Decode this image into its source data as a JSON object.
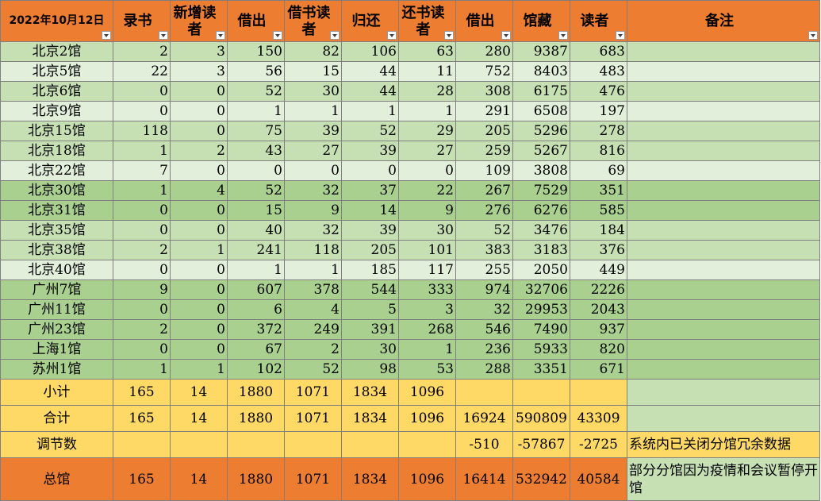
{
  "header": {
    "date": "2022年10月12日",
    "cols": [
      "录书",
      "新增读者",
      "借出",
      "借书读者",
      "归还",
      "还书读者",
      "借出",
      "馆藏",
      "读者",
      "备注"
    ]
  },
  "rows": [
    {
      "name": "北京2馆",
      "v": [
        "2",
        "3",
        "150",
        "82",
        "106",
        "63",
        "280",
        "9387",
        "683"
      ],
      "shade": "a"
    },
    {
      "name": "北京5馆",
      "v": [
        "22",
        "3",
        "56",
        "15",
        "44",
        "11",
        "752",
        "8403",
        "483"
      ],
      "shade": "b"
    },
    {
      "name": "北京6馆",
      "v": [
        "0",
        "0",
        "52",
        "30",
        "44",
        "28",
        "308",
        "6175",
        "476"
      ],
      "shade": "a"
    },
    {
      "name": "北京9馆",
      "v": [
        "0",
        "0",
        "1",
        "1",
        "1",
        "1",
        "291",
        "6508",
        "197"
      ],
      "shade": "b"
    },
    {
      "name": "北京15馆",
      "v": [
        "118",
        "0",
        "75",
        "39",
        "52",
        "29",
        "205",
        "5296",
        "278"
      ],
      "shade": "a"
    },
    {
      "name": "北京18馆",
      "v": [
        "1",
        "2",
        "43",
        "27",
        "39",
        "27",
        "259",
        "5267",
        "816"
      ],
      "shade": "a"
    },
    {
      "name": "北京22馆",
      "v": [
        "7",
        "0",
        "0",
        "0",
        "0",
        "0",
        "109",
        "3808",
        "69"
      ],
      "shade": "b"
    },
    {
      "name": "北京30馆",
      "v": [
        "1",
        "4",
        "52",
        "32",
        "37",
        "22",
        "267",
        "7529",
        "351"
      ],
      "shade": "c"
    },
    {
      "name": "北京31馆",
      "v": [
        "0",
        "0",
        "15",
        "9",
        "14",
        "9",
        "276",
        "6276",
        "585"
      ],
      "shade": "c"
    },
    {
      "name": "北京35馆",
      "v": [
        "0",
        "0",
        "40",
        "32",
        "39",
        "30",
        "52",
        "3476",
        "184"
      ],
      "shade": "a"
    },
    {
      "name": "北京38馆",
      "v": [
        "2",
        "1",
        "241",
        "118",
        "205",
        "101",
        "383",
        "3183",
        "376"
      ],
      "shade": "a"
    },
    {
      "name": "北京40馆",
      "v": [
        "0",
        "0",
        "1",
        "1",
        "185",
        "117",
        "255",
        "2050",
        "449"
      ],
      "shade": "b"
    },
    {
      "name": "广州7馆",
      "v": [
        "9",
        "0",
        "607",
        "378",
        "544",
        "333",
        "974",
        "32706",
        "2226"
      ],
      "shade": "c"
    },
    {
      "name": "广州11馆",
      "v": [
        "0",
        "0",
        "6",
        "4",
        "5",
        "3",
        "32",
        "29953",
        "2043"
      ],
      "shade": "c"
    },
    {
      "name": "广州23馆",
      "v": [
        "2",
        "0",
        "372",
        "249",
        "391",
        "268",
        "546",
        "7490",
        "937"
      ],
      "shade": "c"
    },
    {
      "name": "上海1馆",
      "v": [
        "0",
        "0",
        "67",
        "2",
        "30",
        "1",
        "236",
        "5933",
        "820"
      ],
      "shade": "c"
    },
    {
      "name": "苏州1馆",
      "v": [
        "1",
        "1",
        "102",
        "52",
        "98",
        "53",
        "288",
        "3351",
        "671"
      ],
      "shade": "c"
    }
  ],
  "subtotal": {
    "label": "小计",
    "v": [
      "165",
      "14",
      "1880",
      "1071",
      "1834",
      "1096"
    ]
  },
  "total": {
    "label": "合计",
    "v": [
      "165",
      "14",
      "1880",
      "1071",
      "1834",
      "1096",
      "16924",
      "590809",
      "43309"
    ]
  },
  "adjust": {
    "label": "调节数",
    "v": [
      "-510",
      "-57867",
      "-2725"
    ],
    "note": "系统内已关闭分馆冗余数据"
  },
  "grand": {
    "label": "总馆",
    "v": [
      "165",
      "14",
      "1880",
      "1071",
      "1834",
      "1096",
      "16414",
      "532942",
      "40584"
    ],
    "note": "部分分馆因为疫情和会议暂停开馆"
  }
}
